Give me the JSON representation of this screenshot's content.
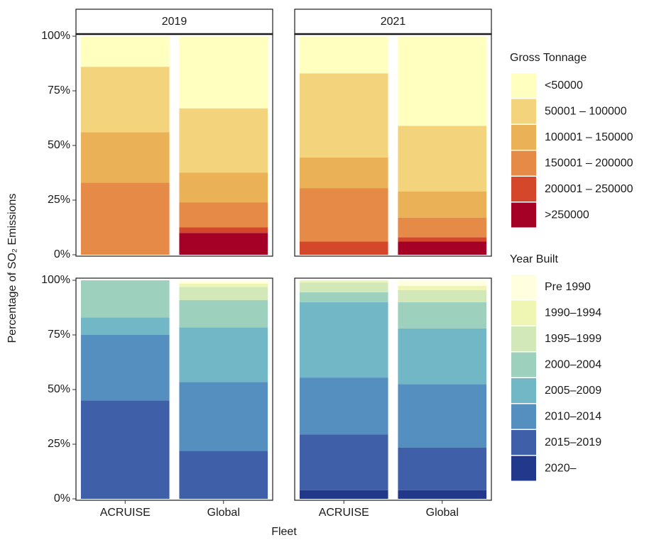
{
  "chart_data": {
    "type": "bar",
    "stacked": true,
    "y_label": "Percentage of SO₂ Emissions",
    "x_label": "Fleet",
    "columns": [
      "2019",
      "2021"
    ],
    "categories": [
      "ACRUISE",
      "Global"
    ],
    "ylim": [
      0,
      100
    ],
    "yticks": [
      {
        "value": 0,
        "label": "0%"
      },
      {
        "value": 25,
        "label": "25%"
      },
      {
        "value": 50,
        "label": "50%"
      },
      {
        "value": 75,
        "label": "75%"
      },
      {
        "value": 100,
        "label": "100%"
      }
    ],
    "grid": false,
    "groups": [
      {
        "legend_title": "Gross Tonnage",
        "series": [
          {
            "name": "<50000",
            "color": "#ffffbf",
            "values": [
              [
                14,
                33
              ],
              [
                17,
                41
              ]
            ]
          },
          {
            "name": "50001 – 100000",
            "color": "#f3d37c",
            "values": [
              [
                30,
                29.5
              ],
              [
                38.5,
                30
              ]
            ]
          },
          {
            "name": "100001 – 150000",
            "color": "#ebb157",
            "values": [
              [
                23,
                13.5
              ],
              [
                14,
                12
              ]
            ]
          },
          {
            "name": "150001 – 200000",
            "color": "#e68b47",
            "values": [
              [
                33,
                11.5
              ],
              [
                24.5,
                9
              ]
            ]
          },
          {
            "name": "200001 – 250000",
            "color": "#d4472a",
            "values": [
              [
                0,
                2.5
              ],
              [
                6,
                2
              ]
            ]
          },
          {
            "name": ">250000",
            "color": "#a50026",
            "values": [
              [
                0,
                10
              ],
              [
                0,
                6
              ]
            ]
          }
        ]
      },
      {
        "legend_title": "Year Built",
        "series": [
          {
            "name": "Pre 1990",
            "color": "#ffffdf",
            "values": [
              [
                0,
                1.5
              ],
              [
                0,
                2.5
              ]
            ]
          },
          {
            "name": "1990–1994",
            "color": "#eff6b3",
            "values": [
              [
                0,
                1.5
              ],
              [
                1,
                2
              ]
            ]
          },
          {
            "name": "1995–1999",
            "color": "#d2e8b8",
            "values": [
              [
                0,
                6
              ],
              [
                4.5,
                5.5
              ]
            ]
          },
          {
            "name": "2000–2004",
            "color": "#9dd0bd",
            "values": [
              [
                17,
                12.5
              ],
              [
                4.5,
                12
              ]
            ]
          },
          {
            "name": "2005–2009",
            "color": "#72b7c6",
            "values": [
              [
                8,
                25
              ],
              [
                34.5,
                25.5
              ]
            ]
          },
          {
            "name": "2010–2014",
            "color": "#548fc0",
            "values": [
              [
                30,
                31.5
              ],
              [
                26,
                29
              ]
            ]
          },
          {
            "name": "2015–2019",
            "color": "#3f60a8",
            "values": [
              [
                45,
                22
              ],
              [
                25.5,
                19.5
              ]
            ]
          },
          {
            "name": "2020–",
            "color": "#22388a",
            "values": [
              [
                0,
                0
              ],
              [
                4,
                4
              ]
            ]
          }
        ]
      }
    ]
  }
}
